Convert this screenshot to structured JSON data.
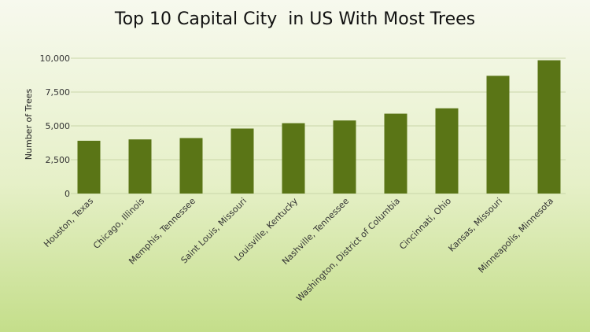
{
  "chart_data": {
    "type": "bar",
    "title": "Top 10 Capital City  in US With Most Trees",
    "ylabel": "Number of Trees",
    "xlabel": "",
    "categories": [
      "Houston, Texas",
      "Chicago, Illinois",
      "Memphis, Tennessee",
      "Saint Louis, Missouri",
      "Louisville, Kentucky",
      "Nashville, Tennessee",
      "Washington, District of Columbia",
      "Cincinnati, Ohio",
      "Kansas, Missouri",
      "Minneapolis, Minnesota"
    ],
    "values": [
      3900,
      4000,
      4100,
      4800,
      5200,
      5400,
      5900,
      6300,
      8700,
      9850
    ],
    "ylim": [
      0,
      10000
    ],
    "yticks": [
      0,
      2500,
      5000,
      7500,
      10000
    ],
    "ytick_labels": [
      "0",
      "2,500",
      "5,000",
      "7,500",
      "10,000"
    ],
    "grid": true,
    "legend": "none",
    "colors": {
      "bar": "#5a7516",
      "grid": "#c9d6a8",
      "background_top": "#f7f9ee",
      "background_bottom": "#c4de8a"
    }
  }
}
